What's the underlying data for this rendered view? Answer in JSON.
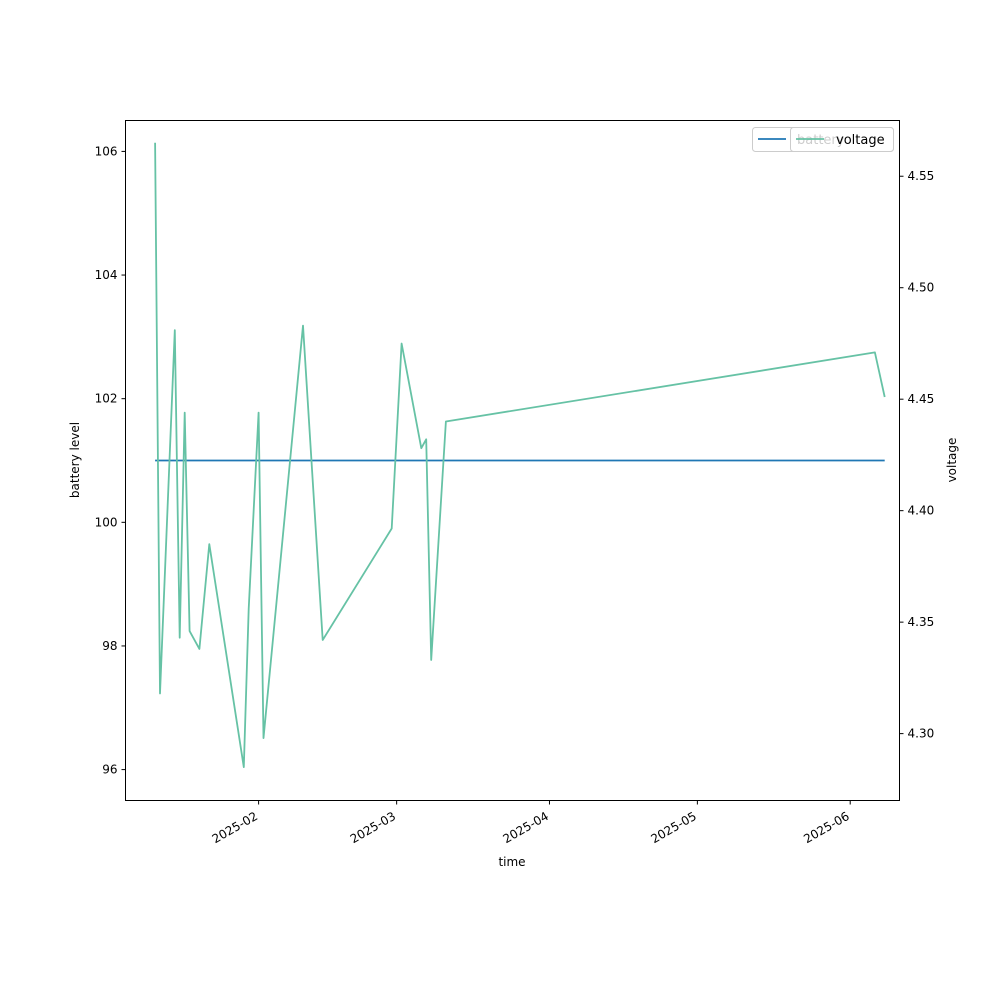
{
  "chart_data": {
    "type": "line",
    "xlabel": "time",
    "ylabel_left": "battery level",
    "ylabel_right": "voltage",
    "x_axis": {
      "type": "date",
      "range": [
        "2025-01-05",
        "2025-06-11"
      ],
      "ticks": [
        "2025-02-01",
        "2025-03-01",
        "2025-04-01",
        "2025-05-01",
        "2025-06-01"
      ],
      "tick_labels": [
        "2025-02",
        "2025-03",
        "2025-04",
        "2025-05",
        "2025-06"
      ]
    },
    "y_left": {
      "range": [
        95.5,
        106.5
      ],
      "ticks": [
        96,
        98,
        100,
        102,
        104,
        106
      ],
      "tick_labels": [
        "96",
        "98",
        "100",
        "102",
        "104",
        "106"
      ]
    },
    "y_right": {
      "range": [
        4.27,
        4.575
      ],
      "ticks": [
        4.3,
        4.35,
        4.4,
        4.45,
        4.5,
        4.55
      ],
      "tick_labels": [
        "4.30",
        "4.35",
        "4.40",
        "4.45",
        "4.50",
        "4.55"
      ]
    },
    "grid": false,
    "series": [
      {
        "name": "battery",
        "axis": "left",
        "color": "#1f77b4",
        "points": [
          {
            "x": "2025-01-11",
            "y": 101
          },
          {
            "x": "2025-06-08",
            "y": 101
          }
        ]
      },
      {
        "name": "voltage",
        "axis": "right",
        "color": "#66c2a5",
        "points": [
          {
            "x": "2025-01-11",
            "y": 4.565
          },
          {
            "x": "2025-01-12",
            "y": 4.318
          },
          {
            "x": "2025-01-15",
            "y": 4.481
          },
          {
            "x": "2025-01-16",
            "y": 4.343
          },
          {
            "x": "2025-01-17",
            "y": 4.444
          },
          {
            "x": "2025-01-18",
            "y": 4.346
          },
          {
            "x": "2025-01-20",
            "y": 4.338
          },
          {
            "x": "2025-01-22",
            "y": 4.385
          },
          {
            "x": "2025-01-29",
            "y": 4.285
          },
          {
            "x": "2025-01-30",
            "y": 4.356
          },
          {
            "x": "2025-02-01",
            "y": 4.444
          },
          {
            "x": "2025-02-02",
            "y": 4.298
          },
          {
            "x": "2025-02-10",
            "y": 4.483
          },
          {
            "x": "2025-02-14",
            "y": 4.342
          },
          {
            "x": "2025-02-28",
            "y": 4.392
          },
          {
            "x": "2025-03-02",
            "y": 4.475
          },
          {
            "x": "2025-03-06",
            "y": 4.428
          },
          {
            "x": "2025-03-07",
            "y": 4.432
          },
          {
            "x": "2025-03-08",
            "y": 4.333
          },
          {
            "x": "2025-03-11",
            "y": 4.44
          },
          {
            "x": "2025-06-06",
            "y": 4.471
          },
          {
            "x": "2025-06-08",
            "y": 4.451
          }
        ]
      }
    ],
    "legends": [
      {
        "entries": [
          "battery"
        ],
        "placement": "top-right"
      },
      {
        "entries": [
          "voltage"
        ],
        "placement": "top-right"
      }
    ]
  }
}
